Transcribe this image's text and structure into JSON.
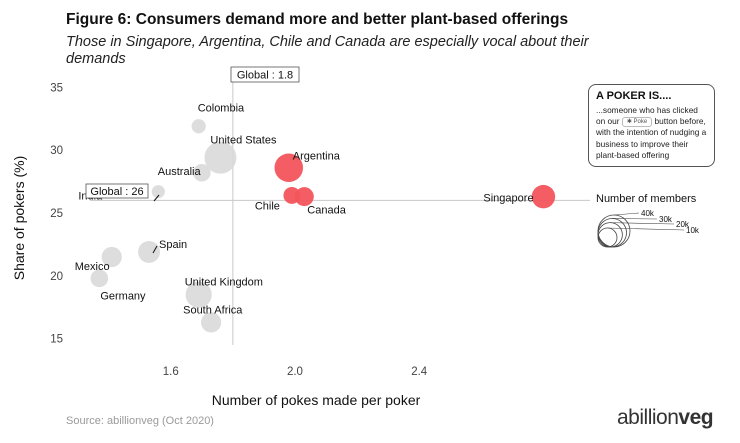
{
  "figure": {
    "title": "Figure 6: Consumers demand more and better plant-based offerings",
    "subtitle": "Those in Singapore, Argentina, Chile and Canada are especially vocal about their demands",
    "source": "Source: abillionveg (Oct 2020)",
    "brand": {
      "part1": "abillion",
      "part2": "veg"
    }
  },
  "chart_data": {
    "type": "scatter",
    "title": "",
    "xlabel": "Number of pokes made per poker",
    "ylabel": "Share of pokers (%)",
    "xlim": [
      1.34,
      2.95
    ],
    "ylim": [
      14.5,
      35.5
    ],
    "xticks": [
      "1.6",
      "2.0",
      "2.4"
    ],
    "yticks": [
      "15",
      "20",
      "25",
      "30",
      "35"
    ],
    "global_x": {
      "label": "Global : 1.8",
      "value": 1.8
    },
    "global_y": {
      "label": "Global : 26",
      "value": 26
    },
    "grid": false,
    "highlight_color": "#f2545b",
    "base_color": "#d9d9d9",
    "points": [
      {
        "label": "Colombia",
        "x": 1.69,
        "y": 31.9,
        "members": 4000,
        "highlight": false
      },
      {
        "label": "United States",
        "x": 1.76,
        "y": 29.4,
        "members": 40000,
        "highlight": false
      },
      {
        "label": "Australia",
        "x": 1.7,
        "y": 28.2,
        "members": 8000,
        "highlight": false
      },
      {
        "label": "India",
        "x": 1.56,
        "y": 26.7,
        "members": 3000,
        "highlight": false
      },
      {
        "label": "Argentina",
        "x": 1.98,
        "y": 28.6,
        "members": 30000,
        "highlight": true
      },
      {
        "label": "Chile",
        "x": 1.99,
        "y": 26.4,
        "members": 7000,
        "highlight": true
      },
      {
        "label": "Canada",
        "x": 2.03,
        "y": 26.3,
        "members": 10000,
        "highlight": true
      },
      {
        "label": "Singapore",
        "x": 2.8,
        "y": 26.3,
        "members": 18000,
        "highlight": true
      },
      {
        "label": "Spain",
        "x": 1.53,
        "y": 21.9,
        "members": 15000,
        "highlight": false
      },
      {
        "label": "Mexico",
        "x": 1.41,
        "y": 21.5,
        "members": 12000,
        "highlight": false
      },
      {
        "label": "Germany",
        "x": 1.37,
        "y": 19.8,
        "members": 8000,
        "highlight": false
      },
      {
        "label": "United Kingdom",
        "x": 1.69,
        "y": 18.5,
        "members": 24000,
        "highlight": false
      },
      {
        "label": "South Africa",
        "x": 1.73,
        "y": 16.3,
        "members": 12000,
        "highlight": false
      }
    ],
    "size_legend": {
      "title": "Number of members",
      "items": [
        {
          "label": "40k",
          "members": 40000
        },
        {
          "label": "30k",
          "members": 30000
        },
        {
          "label": "20k",
          "members": 20000
        },
        {
          "label": "10k",
          "members": 10000
        }
      ]
    }
  },
  "callout": {
    "title": "A POKER IS....",
    "text_before": "...someone who has clicked on our",
    "button_label": "Poke",
    "text_after": "button before, with the intention of nudging a business to improve their plant-based offering"
  }
}
